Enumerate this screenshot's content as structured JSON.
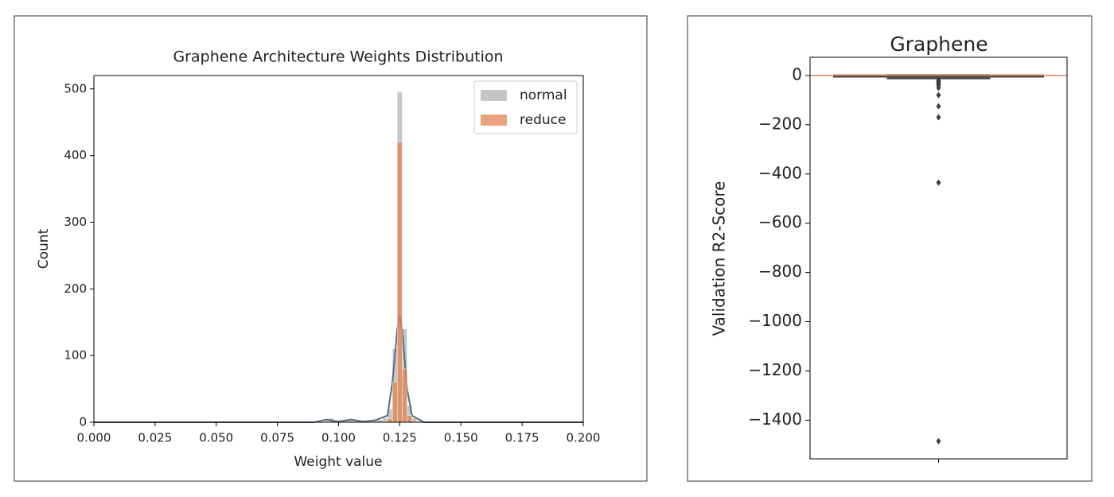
{
  "chart_data": [
    {
      "type": "histogram",
      "title": "Graphene Architecture Weights Distribution",
      "xlabel": "Weight value",
      "ylabel": "Count",
      "bins": [
        0.094,
        0.096,
        0.098,
        0.1,
        0.102,
        0.104,
        0.106,
        0.108,
        0.11,
        0.112,
        0.114,
        0.116,
        0.118,
        0.12,
        0.122,
        0.124,
        0.126,
        0.128,
        0.13,
        0.132,
        0.134
      ],
      "series": [
        {
          "name": "normal",
          "color": "#8c8c8c",
          "values": [
            2,
            6,
            3,
            1,
            2,
            5,
            2,
            1,
            1,
            2,
            3,
            4,
            6,
            20,
            110,
            495,
            140,
            25,
            6,
            2
          ],
          "kde": {
            "x": [
              0,
              0.09,
              0.095,
              0.1,
              0.105,
              0.11,
              0.115,
              0.12,
              0.122,
              0.124,
              0.125,
              0.126,
              0.128,
              0.13,
              0.135,
              0.2
            ],
            "values": [
              0,
              0,
              4,
              1,
              4,
              1,
              3,
              10,
              60,
              140,
              160,
              140,
              50,
              10,
              0,
              0
            ],
            "color": "#5a6e80"
          }
        },
        {
          "name": "reduce",
          "color": "#dd8452",
          "values": [
            0,
            0,
            0,
            0,
            0,
            0,
            0,
            0,
            0,
            0,
            0,
            0,
            0,
            5,
            60,
            420,
            80,
            10,
            2,
            0
          ]
        }
      ],
      "xlim": [
        0,
        0.2
      ],
      "xticks": [
        {
          "value": 0,
          "label": "0.000"
        },
        {
          "value": 0.025,
          "label": "0.025"
        },
        {
          "value": 0.05,
          "label": "0.050"
        },
        {
          "value": 0.075,
          "label": "0.075"
        },
        {
          "value": 0.1,
          "label": "0.100"
        },
        {
          "value": 0.125,
          "label": "0.125"
        },
        {
          "value": 0.15,
          "label": "0.150"
        },
        {
          "value": 0.175,
          "label": "0.175"
        },
        {
          "value": 0.2,
          "label": "0.200"
        }
      ],
      "ylim": [
        0,
        520
      ],
      "yticks": [
        0,
        100,
        200,
        300,
        400,
        500
      ],
      "legend": "upper right"
    },
    {
      "type": "box",
      "title": "Graphene",
      "ylabel": "Validation R2-Score",
      "box": {
        "whisker_low": -12,
        "q1": -5,
        "median": 0,
        "q3": 0.5,
        "whisker_high": 1,
        "outliers": [
          -20,
          -25,
          -30,
          -35,
          -40,
          -50,
          -80,
          -125,
          -170,
          -435,
          -1485
        ],
        "color": "#3a3a3a",
        "median_color": "#dd8452"
      },
      "ylim": [
        -1557,
        74
      ],
      "yticks": [
        {
          "value": 0,
          "label": "0"
        },
        {
          "value": -200,
          "label": "−200"
        },
        {
          "value": -400,
          "label": "−400"
        },
        {
          "value": -600,
          "label": "−600"
        },
        {
          "value": -800,
          "label": "−800"
        },
        {
          "value": -1000,
          "label": "−1000"
        },
        {
          "value": -1200,
          "label": "−1200"
        },
        {
          "value": -1400,
          "label": "−1400"
        }
      ]
    }
  ]
}
